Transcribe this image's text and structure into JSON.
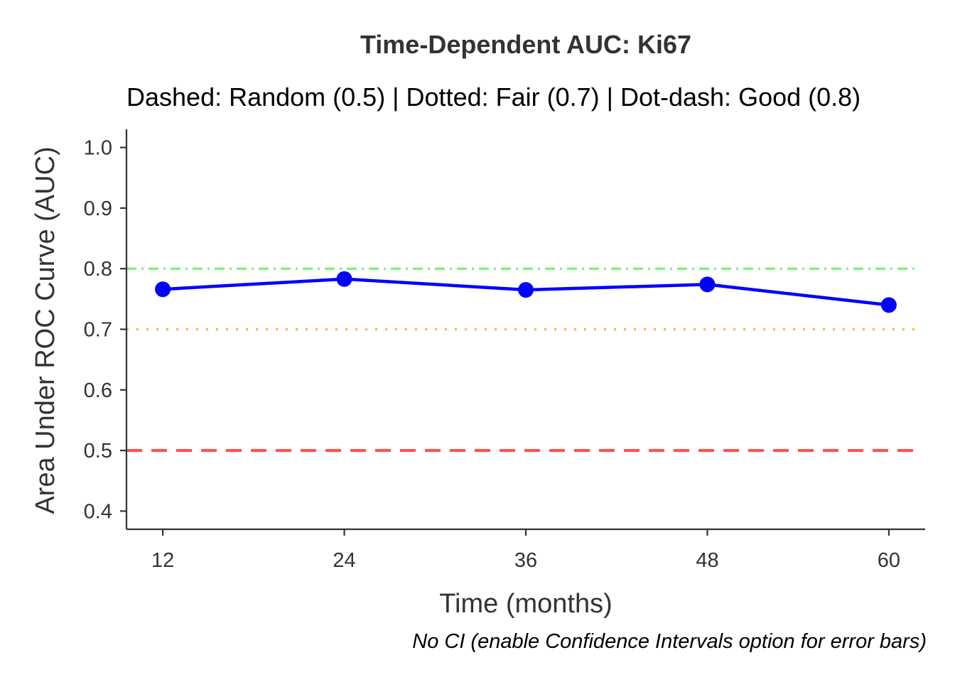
{
  "chart_data": {
    "type": "line",
    "title": "Time-Dependent AUC: Ki67",
    "subtitle": "Dashed: Random (0.5) | Dotted: Fair (0.7) | Dot-dash: Good (0.8)",
    "xlabel": "Time (months)",
    "ylabel": "Area Under ROC Curve (AUC)",
    "caption": "No CI (enable Confidence Intervals option for error bars)",
    "x": [
      12,
      24,
      36,
      48,
      60
    ],
    "x_tick_labels": [
      "12",
      "24",
      "36",
      "48",
      "60"
    ],
    "xlim": [
      9.6,
      62.4
    ],
    "ylim": [
      0.37,
      1.03
    ],
    "y_ticks": [
      0.4,
      0.5,
      0.6,
      0.7,
      0.8,
      0.9,
      1.0
    ],
    "y_tick_labels": [
      "0.4",
      "0.5",
      "0.6",
      "0.7",
      "0.8",
      "0.9",
      "1.0"
    ],
    "series": [
      {
        "values": [
          0.766,
          0.783,
          0.765,
          0.774,
          0.74
        ],
        "color": "#0000ff"
      }
    ],
    "reference_lines": [
      {
        "y": 0.5,
        "style": "dashed",
        "color": "#ff4d4d"
      },
      {
        "y": 0.7,
        "style": "dotted",
        "color": "#ffb347"
      },
      {
        "y": 0.8,
        "style": "dot-dash",
        "color": "#7cf57c"
      }
    ],
    "grid": false,
    "legend": "none"
  }
}
